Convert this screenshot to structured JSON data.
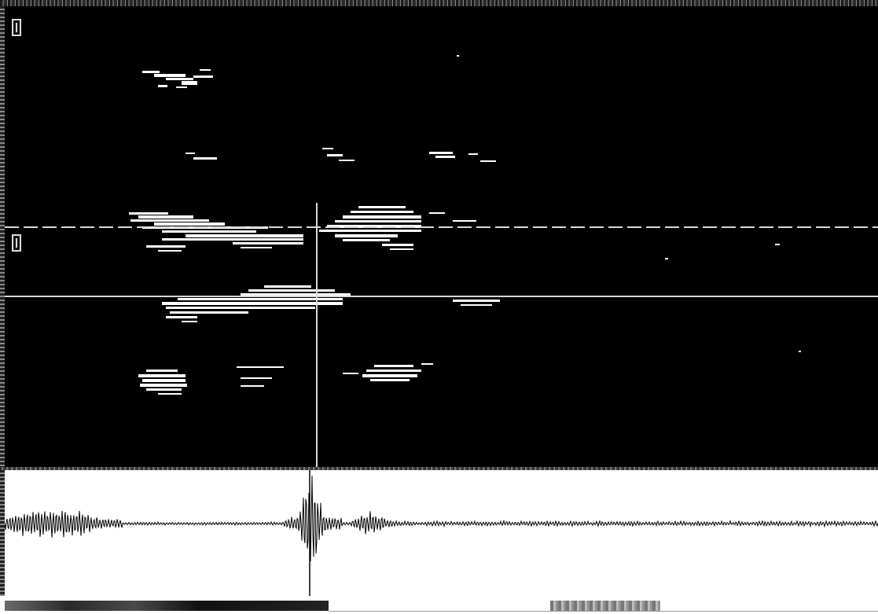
{
  "colors": {
    "spectrogram_background": "#000000",
    "spectrogram_energy": "#ffffff",
    "cursor_line": "#e0e0e0",
    "waveform_background": "#ffffff",
    "waveform_trace": "#000000"
  },
  "icons": {
    "marker_top": "bracket-marker-icon",
    "marker_mid": "bracket-marker-icon"
  },
  "cursor": {
    "vertical_fraction": 0.355,
    "horizontal_upper_fraction": 0.48,
    "horizontal_lower_fraction": 0.63
  },
  "scrollbar": {
    "thumb_start_fraction": 0.0,
    "thumb_end_fraction": 0.375
  }
}
